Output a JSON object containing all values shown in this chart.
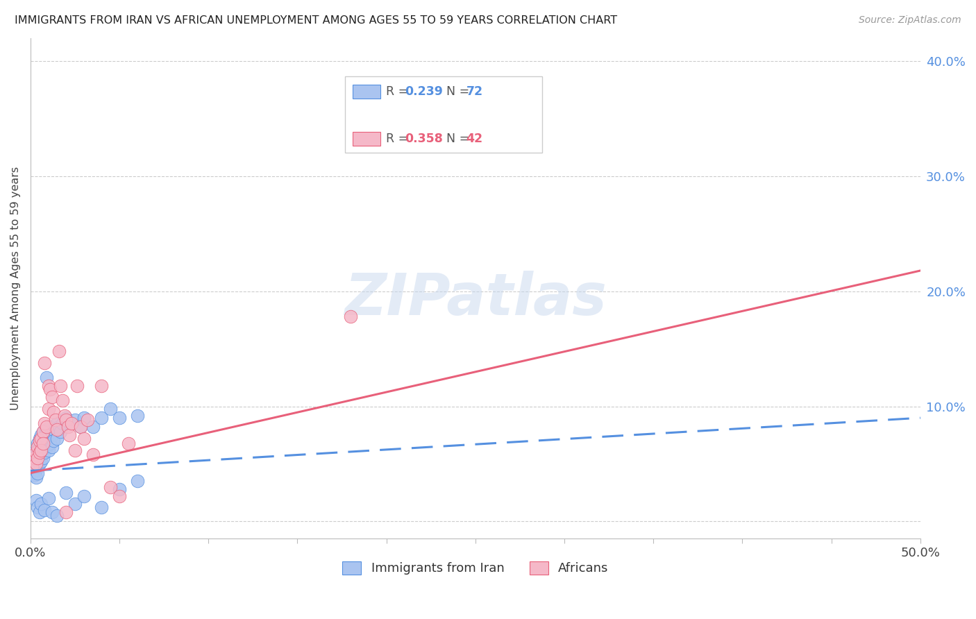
{
  "title": "IMMIGRANTS FROM IRAN VS AFRICAN UNEMPLOYMENT AMONG AGES 55 TO 59 YEARS CORRELATION CHART",
  "source": "Source: ZipAtlas.com",
  "ylabel": "Unemployment Among Ages 55 to 59 years",
  "xlim": [
    0.0,
    0.5
  ],
  "ylim": [
    -0.015,
    0.42
  ],
  "yticks": [
    0.0,
    0.1,
    0.2,
    0.3,
    0.4
  ],
  "ytick_labels": [
    "",
    "10.0%",
    "20.0%",
    "30.0%",
    "40.0%"
  ],
  "xticks": [
    0.0,
    0.05,
    0.1,
    0.15,
    0.2,
    0.25,
    0.3,
    0.35,
    0.4,
    0.45,
    0.5
  ],
  "iran_color": "#aac4f0",
  "african_color": "#f5b8c8",
  "iran_line_color": "#5590e0",
  "african_line_color": "#e8607a",
  "iran_scatter": [
    [
      0.001,
      0.05
    ],
    [
      0.001,
      0.045
    ],
    [
      0.001,
      0.042
    ],
    [
      0.002,
      0.055
    ],
    [
      0.002,
      0.06
    ],
    [
      0.002,
      0.048
    ],
    [
      0.002,
      0.04
    ],
    [
      0.003,
      0.058
    ],
    [
      0.003,
      0.052
    ],
    [
      0.003,
      0.045
    ],
    [
      0.003,
      0.038
    ],
    [
      0.004,
      0.068
    ],
    [
      0.004,
      0.062
    ],
    [
      0.004,
      0.055
    ],
    [
      0.004,
      0.048
    ],
    [
      0.004,
      0.042
    ],
    [
      0.005,
      0.072
    ],
    [
      0.005,
      0.065
    ],
    [
      0.005,
      0.058
    ],
    [
      0.005,
      0.05
    ],
    [
      0.006,
      0.075
    ],
    [
      0.006,
      0.068
    ],
    [
      0.006,
      0.06
    ],
    [
      0.006,
      0.052
    ],
    [
      0.007,
      0.078
    ],
    [
      0.007,
      0.07
    ],
    [
      0.007,
      0.062
    ],
    [
      0.007,
      0.055
    ],
    [
      0.008,
      0.075
    ],
    [
      0.008,
      0.068
    ],
    [
      0.008,
      0.06
    ],
    [
      0.009,
      0.125
    ],
    [
      0.009,
      0.08
    ],
    [
      0.009,
      0.065
    ],
    [
      0.01,
      0.078
    ],
    [
      0.01,
      0.062
    ],
    [
      0.011,
      0.082
    ],
    [
      0.011,
      0.068
    ],
    [
      0.012,
      0.075
    ],
    [
      0.012,
      0.065
    ],
    [
      0.013,
      0.08
    ],
    [
      0.013,
      0.07
    ],
    [
      0.015,
      0.085
    ],
    [
      0.015,
      0.072
    ],
    [
      0.016,
      0.082
    ],
    [
      0.017,
      0.078
    ],
    [
      0.018,
      0.085
    ],
    [
      0.02,
      0.09
    ],
    [
      0.022,
      0.085
    ],
    [
      0.025,
      0.088
    ],
    [
      0.028,
      0.082
    ],
    [
      0.03,
      0.09
    ],
    [
      0.035,
      0.082
    ],
    [
      0.04,
      0.09
    ],
    [
      0.045,
      0.098
    ],
    [
      0.05,
      0.09
    ],
    [
      0.06,
      0.092
    ],
    [
      0.003,
      0.018
    ],
    [
      0.004,
      0.012
    ],
    [
      0.005,
      0.008
    ],
    [
      0.006,
      0.015
    ],
    [
      0.008,
      0.01
    ],
    [
      0.01,
      0.02
    ],
    [
      0.012,
      0.008
    ],
    [
      0.015,
      0.005
    ],
    [
      0.02,
      0.025
    ],
    [
      0.025,
      0.015
    ],
    [
      0.03,
      0.022
    ],
    [
      0.04,
      0.012
    ],
    [
      0.05,
      0.028
    ],
    [
      0.06,
      0.035
    ]
  ],
  "african_scatter": [
    [
      0.001,
      0.048
    ],
    [
      0.002,
      0.055
    ],
    [
      0.003,
      0.06
    ],
    [
      0.003,
      0.05
    ],
    [
      0.004,
      0.065
    ],
    [
      0.004,
      0.055
    ],
    [
      0.005,
      0.07
    ],
    [
      0.005,
      0.06
    ],
    [
      0.006,
      0.072
    ],
    [
      0.006,
      0.062
    ],
    [
      0.007,
      0.078
    ],
    [
      0.007,
      0.068
    ],
    [
      0.008,
      0.138
    ],
    [
      0.008,
      0.085
    ],
    [
      0.009,
      0.082
    ],
    [
      0.01,
      0.118
    ],
    [
      0.01,
      0.098
    ],
    [
      0.011,
      0.115
    ],
    [
      0.012,
      0.108
    ],
    [
      0.013,
      0.095
    ],
    [
      0.014,
      0.088
    ],
    [
      0.015,
      0.08
    ],
    [
      0.016,
      0.148
    ],
    [
      0.017,
      0.118
    ],
    [
      0.018,
      0.105
    ],
    [
      0.019,
      0.092
    ],
    [
      0.02,
      0.088
    ],
    [
      0.021,
      0.082
    ],
    [
      0.022,
      0.075
    ],
    [
      0.023,
      0.085
    ],
    [
      0.025,
      0.062
    ],
    [
      0.026,
      0.118
    ],
    [
      0.028,
      0.082
    ],
    [
      0.03,
      0.072
    ],
    [
      0.032,
      0.088
    ],
    [
      0.035,
      0.058
    ],
    [
      0.04,
      0.118
    ],
    [
      0.045,
      0.03
    ],
    [
      0.05,
      0.022
    ],
    [
      0.055,
      0.068
    ],
    [
      0.18,
      0.178
    ],
    [
      0.02,
      0.008
    ]
  ],
  "iran_trend_x": [
    0.0,
    0.5
  ],
  "iran_trend_y": [
    0.044,
    0.09
  ],
  "african_trend_x": [
    0.0,
    0.5
  ],
  "african_trend_y": [
    0.042,
    0.218
  ]
}
